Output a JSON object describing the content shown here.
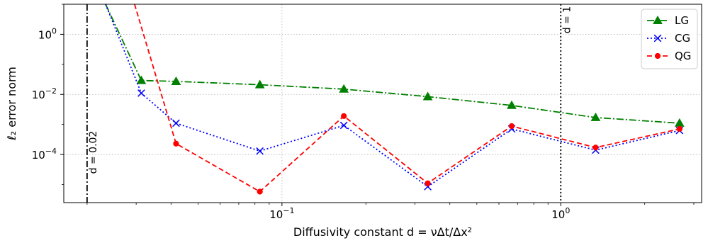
{
  "chart_data": {
    "type": "line",
    "xscale": "log",
    "yscale": "log",
    "xlim": [
      0.0165,
      3.2
    ],
    "ylim": [
      2.5e-06,
      10
    ],
    "xlabel": "Diffusivity constant d = νΔt/Δx²",
    "ylabel": "ℓ₂ error norm",
    "grid": true,
    "legend_position": "top-right",
    "x_ticks": [
      {
        "value": 0.1,
        "base": "10",
        "exp": "−1"
      },
      {
        "value": 1,
        "base": "10",
        "exp": "0"
      }
    ],
    "y_ticks": [
      {
        "value": 1,
        "base": "10",
        "exp": "0"
      },
      {
        "value": 0.01,
        "base": "10",
        "exp": "−2"
      },
      {
        "value": 0.0001,
        "base": "10",
        "exp": "−4"
      }
    ],
    "vertical_lines": [
      {
        "x": 0.02,
        "label": "d = 0.02",
        "style": "dashdot"
      },
      {
        "x": 1,
        "label": "d = 1",
        "style": "dotted"
      }
    ],
    "series": [
      {
        "name": "LG",
        "color": "#008000",
        "linestyle": "dashdot",
        "marker": "triangle",
        "x": [
          0.0233,
          0.0313,
          0.0417,
          0.0833,
          0.1667,
          0.3333,
          0.6667,
          1.3333,
          2.6667
        ],
        "y": [
          10,
          0.029,
          0.027,
          0.021,
          0.015,
          0.0084,
          0.0043,
          0.0017,
          0.0011
        ]
      },
      {
        "name": "CG",
        "color": "#0000ff",
        "linestyle": "dotted",
        "marker": "x",
        "x": [
          0.0233,
          0.0313,
          0.0417,
          0.0833,
          0.1667,
          0.3333,
          0.6667,
          1.3333,
          2.6667
        ],
        "y": [
          10,
          0.011,
          0.0011,
          0.00013,
          0.00093,
          8.5e-06,
          0.00071,
          0.00014,
          0.00063
        ]
      },
      {
        "name": "QG",
        "color": "#ff0000",
        "linestyle": "dashed",
        "marker": "circle",
        "x": [
          0.0296,
          0.0417,
          0.0833,
          0.1667,
          0.3333,
          0.6667,
          1.3333,
          2.6667
        ],
        "y": [
          10,
          0.00023,
          5.8e-06,
          0.0019,
          1.1e-05,
          0.00088,
          0.00017,
          0.00071
        ]
      }
    ]
  }
}
